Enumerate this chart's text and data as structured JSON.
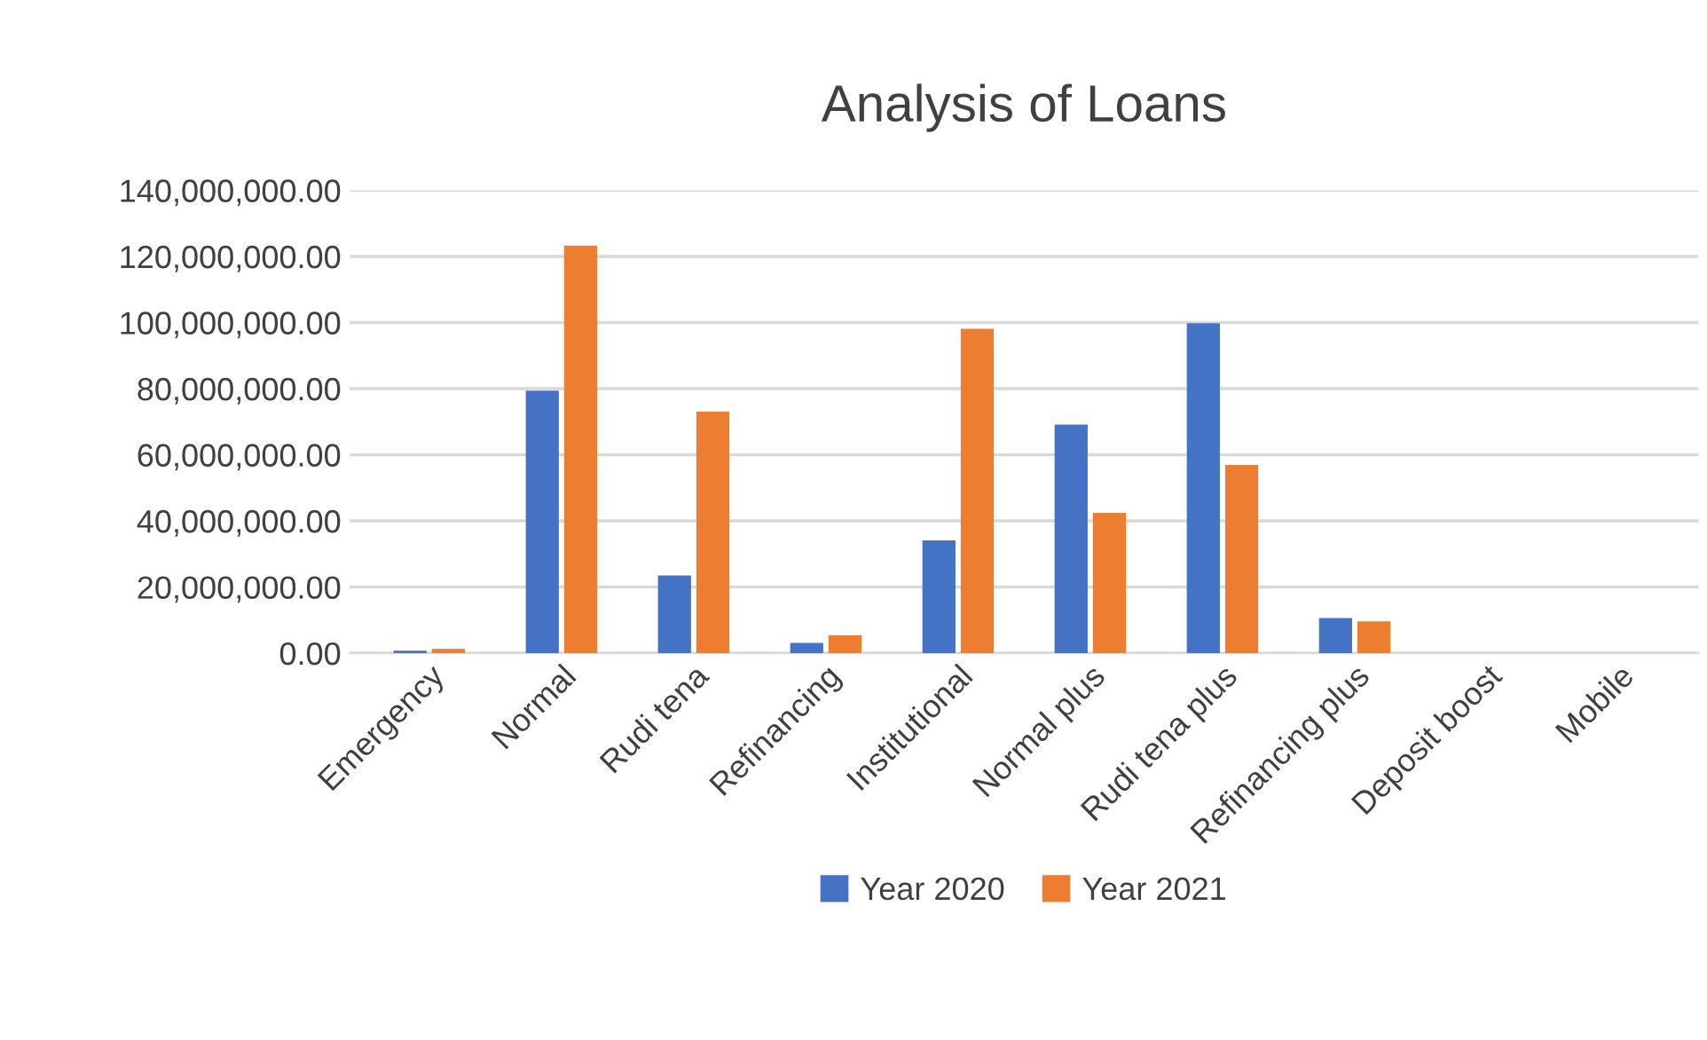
{
  "chart_data": {
    "type": "bar",
    "title": "Analysis of Loans",
    "categories": [
      "Emergency",
      "Normal",
      "Rudi tena",
      "Refinancing",
      "Institutional",
      "Normal plus",
      "Rudi tena plus",
      "Refinancing plus",
      "Deposit boost",
      "Mobile"
    ],
    "series": [
      {
        "name": "Year 2020",
        "color": "#4472c4",
        "values": [
          740000,
          79400000,
          23500000,
          3100000,
          34100000,
          69100000,
          99800000,
          10600000,
          0,
          0
        ]
      },
      {
        "name": "Year 2021",
        "color": "#ed7d31",
        "values": [
          1300000,
          123300000,
          73100000,
          5400000,
          98100000,
          42400000,
          56900000,
          9600000,
          0,
          0
        ]
      }
    ],
    "ylim": [
      0,
      140000000
    ],
    "yticks": [
      {
        "value": 0,
        "label": "0.00"
      },
      {
        "value": 20000000,
        "label": "20,000,000.00"
      },
      {
        "value": 40000000,
        "label": "40,000,000.00"
      },
      {
        "value": 60000000,
        "label": "60,000,000.00"
      },
      {
        "value": 80000000,
        "label": "80,000,000.00"
      },
      {
        "value": 100000000,
        "label": "100,000,000.00"
      },
      {
        "value": 120000000,
        "label": "120,000,000.00"
      },
      {
        "value": 140000000,
        "label": "140,000,000.00"
      }
    ],
    "grid": "y",
    "legend": "bottom"
  }
}
